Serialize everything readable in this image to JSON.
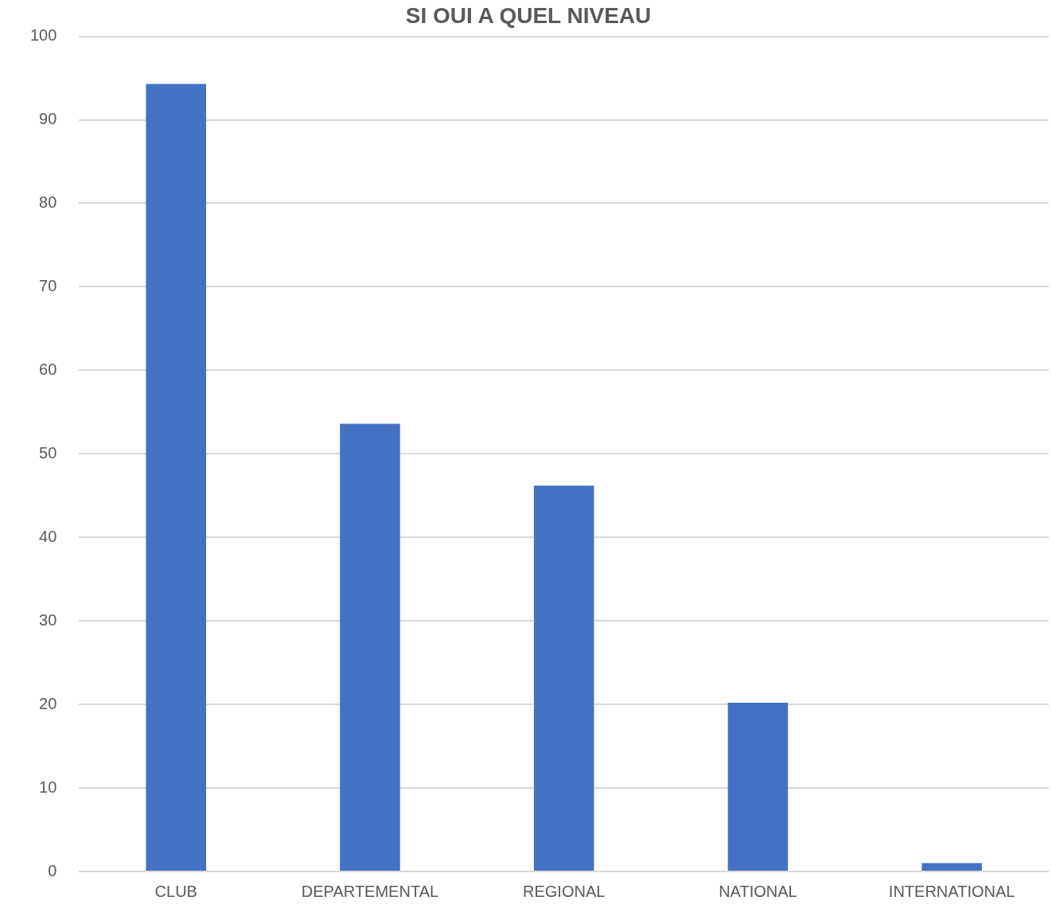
{
  "chart_data": {
    "type": "bar",
    "title": "SI OUI A QUEL NIVEAU",
    "categories": [
      "CLUB",
      "DEPARTEMENTAL",
      "REGIONAL",
      "NATIONAL",
      "INTERNATIONAL"
    ],
    "values": [
      94.3,
      53.6,
      46.2,
      20.2,
      1.0
    ],
    "color": "#4472c4",
    "ylim": [
      0,
      100
    ],
    "yticks": [
      0,
      10,
      20,
      30,
      40,
      50,
      60,
      70,
      80,
      90,
      100
    ],
    "grid": "y",
    "legend": false
  }
}
